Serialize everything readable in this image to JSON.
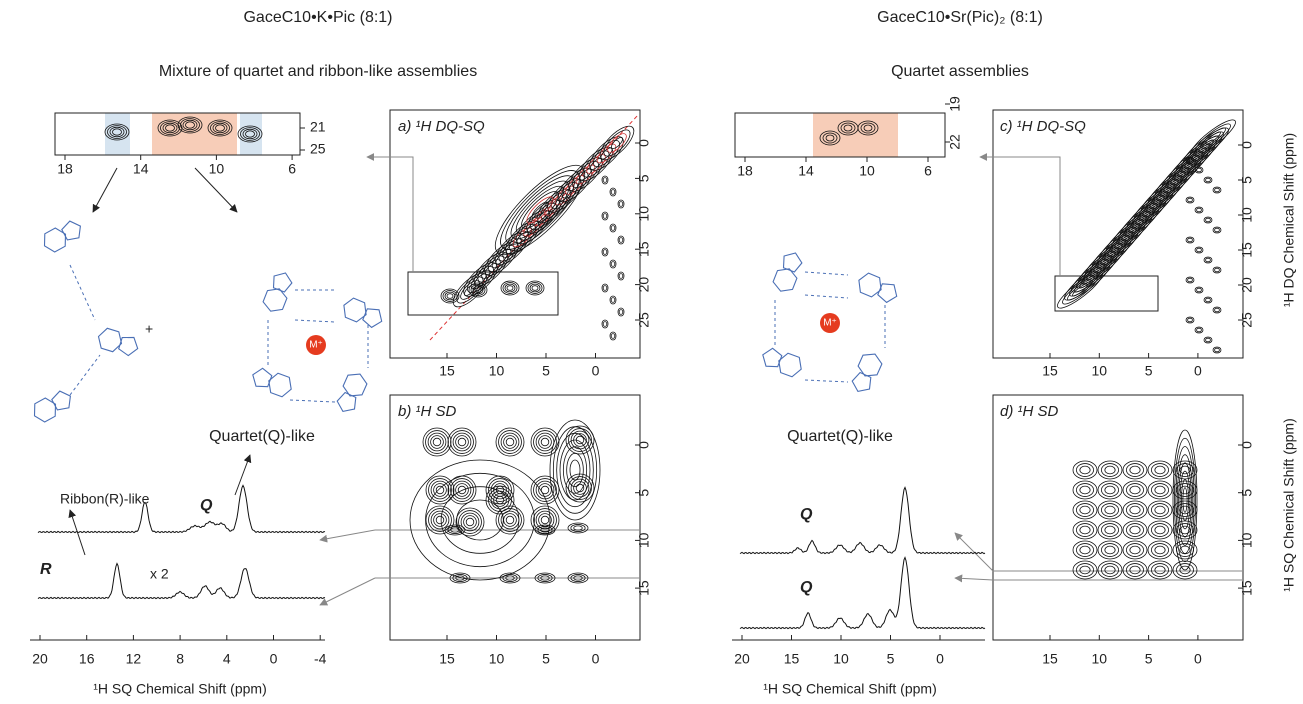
{
  "left": {
    "title": "GaceC10•K•Pic (8:1)",
    "subtitle": "Mixture of quartet and ribbon-like assemblies",
    "inset": {
      "xticks": [
        18,
        14,
        10,
        6
      ],
      "yticks": [
        21,
        25
      ]
    },
    "panel_a": {
      "label": "a) ¹H DQ-SQ",
      "xticks": [
        15,
        10,
        5,
        0
      ],
      "yticks": [
        0,
        5,
        10,
        15,
        20,
        25
      ]
    },
    "panel_b": {
      "label": "b) ¹H SD",
      "xticks": [
        15,
        10,
        5,
        0
      ],
      "yticks": [
        0,
        5,
        10,
        15
      ]
    },
    "ribbon_label": "Ribbon(R)-like",
    "quartet_label": "Quartet(Q)-like",
    "plus": "+",
    "ion": "M⁺",
    "spectra": {
      "upper_label": "Q",
      "lower_label": "R",
      "scale_label": "x 2",
      "xticks": [
        20,
        16,
        12,
        8,
        4,
        0,
        -4
      ]
    },
    "x_axis_label": "¹H SQ Chemical Shift (ppm)"
  },
  "right": {
    "title": "GaceC10•Sr(Pic)₂ (8:1)",
    "subtitle": "Quartet assemblies",
    "inset": {
      "xticks": [
        18,
        14,
        10,
        6
      ],
      "yticks": [
        19,
        22
      ]
    },
    "panel_c": {
      "label": "c) ¹H DQ-SQ",
      "xticks": [
        15,
        10,
        5,
        0
      ],
      "yticks": [
        0,
        5,
        10,
        15,
        20,
        25
      ],
      "y_axis_label": "¹H DQ Chemical Shift (ppm)"
    },
    "panel_d": {
      "label": "d) ¹H SD",
      "xticks": [
        15,
        10,
        5,
        0
      ],
      "yticks": [
        0,
        5,
        10,
        15
      ],
      "y_axis_label": "¹H SQ Chemical Shift (ppm)"
    },
    "quartet_label": "Quartet(Q)-like",
    "ion": "M⁺",
    "spectra": {
      "upper_label": "Q",
      "lower_label": "Q",
      "xticks": [
        20,
        15,
        10,
        5,
        0
      ]
    },
    "x_axis_label": "¹H SQ Chemical Shift (ppm)"
  }
}
